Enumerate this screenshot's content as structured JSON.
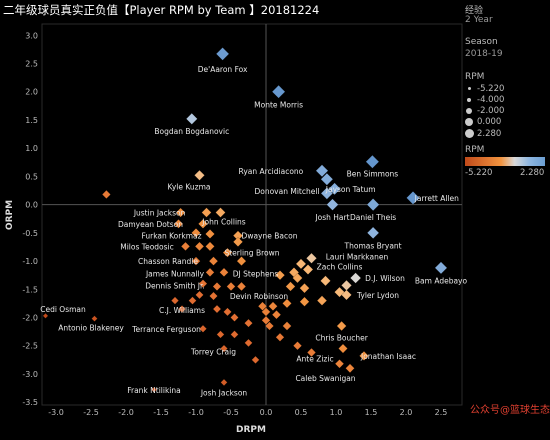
{
  "title": "二年级球员真实正负值【Player RPM by Team 】20181224",
  "sidebar": {
    "exp_label": "经验",
    "exp_value": "2 Year",
    "season_label": "Season",
    "season_value": "2018-19",
    "size_legend_title": "RPM",
    "size_legend_items": [
      "-5.220",
      "-4.000",
      "-2.000",
      "0.000",
      "2.280"
    ],
    "color_legend_title": "RPM",
    "color_min": "-5.220",
    "color_max": "2.280"
  },
  "watermark": "公众号@篮球生态",
  "chart_data": {
    "type": "scatter",
    "xlabel": "DRPM",
    "ylabel": "ORPM",
    "xlim": [
      -3.2,
      2.8
    ],
    "ylim": [
      -3.55,
      3.2
    ],
    "xticks": [
      "-3.0",
      "-2.5",
      "-2.0",
      "-1.5",
      "-1.0",
      "-0.5",
      "0.0",
      "0.5",
      "1.0",
      "1.5",
      "2.0",
      "2.5"
    ],
    "yticks": [
      "3.0",
      "2.5",
      "2.0",
      "1.5",
      "1.0",
      "0.5",
      "0.0",
      "-0.5",
      "-1.0",
      "-1.5",
      "-2.0",
      "-2.5",
      "-3.0",
      "-3.5"
    ],
    "points": [
      {
        "x": -0.62,
        "y": 2.67,
        "label": "De'Aaron Fox",
        "lx": -0.62,
        "ly": 2.4
      },
      {
        "x": 0.18,
        "y": 2.0,
        "label": "Monte Morris",
        "lx": 0.18,
        "ly": 1.77
      },
      {
        "x": -1.06,
        "y": 1.52,
        "label": "Bogdan Bogdanovic",
        "lx": -1.06,
        "ly": 1.3
      },
      {
        "x": 1.52,
        "y": 0.76,
        "label": "Ben Simmons",
        "lx": 1.52,
        "ly": 0.55
      },
      {
        "x": 0.8,
        "y": 0.6,
        "label": "Ryan Arcidiacono",
        "lx": 0.07,
        "ly": 0.6
      },
      {
        "x": 0.87,
        "y": 0.45,
        "label": "",
        "lx": 0,
        "ly": 0
      },
      {
        "x": 0.98,
        "y": 0.28,
        "label": "Jayson Tatum",
        "lx": 1.21,
        "ly": 0.28
      },
      {
        "x": 0.87,
        "y": 0.2,
        "label": "Donovan Mitchell",
        "lx": 0.3,
        "ly": 0.24
      },
      {
        "x": 2.1,
        "y": 0.12,
        "label": "Jarrett Allen",
        "lx": 2.44,
        "ly": 0.12
      },
      {
        "x": 0.95,
        "y": 0.0,
        "label": "Josh Hart",
        "lx": 0.95,
        "ly": -0.22
      },
      {
        "x": 1.53,
        "y": 0.0,
        "label": "Daniel Theis",
        "lx": 1.53,
        "ly": -0.22
      },
      {
        "x": 1.53,
        "y": -0.5,
        "label": "Thomas Bryant",
        "lx": 1.53,
        "ly": -0.72
      },
      {
        "x": 2.5,
        "y": -1.12,
        "label": "Bam Adebayo",
        "lx": 2.5,
        "ly": -1.34
      },
      {
        "x": -0.95,
        "y": 0.52,
        "label": "Kyle Kuzma",
        "lx": -1.1,
        "ly": 0.32
      },
      {
        "x": -2.28,
        "y": 0.18,
        "label": "",
        "lx": 0,
        "ly": 0
      },
      {
        "x": -1.22,
        "y": -0.14,
        "label": "Justin Jackson",
        "lx": -1.52,
        "ly": -0.14
      },
      {
        "x": -0.85,
        "y": -0.14,
        "label": "",
        "lx": 0,
        "ly": 0
      },
      {
        "x": -0.65,
        "y": -0.14,
        "label": "John Collins",
        "lx": -0.6,
        "ly": -0.3
      },
      {
        "x": -1.25,
        "y": -0.34,
        "label": "Damyean Dotson",
        "lx": -1.65,
        "ly": -0.34
      },
      {
        "x": -0.9,
        "y": -0.34,
        "label": "",
        "lx": 0,
        "ly": 0
      },
      {
        "x": -1.0,
        "y": -0.5,
        "label": "",
        "lx": 0,
        "ly": 0
      },
      {
        "x": -0.8,
        "y": -0.52,
        "label": "Furkan Korkmaz",
        "lx": -1.35,
        "ly": -0.55
      },
      {
        "x": -0.4,
        "y": -0.55,
        "label": "Dwayne Bacon",
        "lx": 0.05,
        "ly": -0.55
      },
      {
        "x": -0.4,
        "y": -0.66,
        "label": "",
        "lx": 0,
        "ly": 0
      },
      {
        "x": -1.15,
        "y": -0.74,
        "label": "Milos Teodosic",
        "lx": -1.7,
        "ly": -0.74
      },
      {
        "x": -0.95,
        "y": -0.74,
        "label": "",
        "lx": 0,
        "ly": 0
      },
      {
        "x": -0.8,
        "y": -0.74,
        "label": "",
        "lx": 0,
        "ly": 0
      },
      {
        "x": -0.55,
        "y": -0.85,
        "label": "Sterling Brown",
        "lx": -0.2,
        "ly": -0.85
      },
      {
        "x": 0.65,
        "y": -0.95,
        "label": "Lauri Markkanen",
        "lx": 1.3,
        "ly": -0.92
      },
      {
        "x": -1.0,
        "y": -1.0,
        "label": "Chasson Randle",
        "lx": -1.4,
        "ly": -1.0
      },
      {
        "x": -0.75,
        "y": -1.0,
        "label": "",
        "lx": 0,
        "ly": 0
      },
      {
        "x": -0.35,
        "y": -1.0,
        "label": "",
        "lx": 0,
        "ly": 0
      },
      {
        "x": 0.5,
        "y": -1.05,
        "label": "",
        "lx": 0,
        "ly": 0
      },
      {
        "x": 0.6,
        "y": -1.15,
        "label": "Zach Collins",
        "lx": 1.05,
        "ly": -1.1
      },
      {
        "x": 0.4,
        "y": -1.2,
        "label": "",
        "lx": 0,
        "ly": 0
      },
      {
        "x": 0.2,
        "y": -1.25,
        "label": "",
        "lx": 0,
        "ly": 0
      },
      {
        "x": -0.8,
        "y": -1.2,
        "label": "James Nunnally",
        "lx": -1.3,
        "ly": -1.22
      },
      {
        "x": -0.6,
        "y": -1.2,
        "label": "DJ Stephens",
        "lx": -0.15,
        "ly": -1.22
      },
      {
        "x": 0.45,
        "y": -1.3,
        "label": "",
        "lx": 0,
        "ly": 0
      },
      {
        "x": 1.28,
        "y": -1.3,
        "label": "D.J. Wilson",
        "lx": 1.7,
        "ly": -1.3
      },
      {
        "x": 0.85,
        "y": -1.35,
        "label": "",
        "lx": 0,
        "ly": 0
      },
      {
        "x": 1.15,
        "y": -1.43,
        "label": "",
        "lx": 0,
        "ly": 0
      },
      {
        "x": -0.9,
        "y": -1.4,
        "label": "Dennis Smith Jr.",
        "lx": -1.3,
        "ly": -1.43
      },
      {
        "x": -0.7,
        "y": -1.45,
        "label": "",
        "lx": 0,
        "ly": 0
      },
      {
        "x": -0.5,
        "y": -1.45,
        "label": "",
        "lx": 0,
        "ly": 0
      },
      {
        "x": -0.35,
        "y": -1.45,
        "label": "",
        "lx": 0,
        "ly": 0
      },
      {
        "x": 0.35,
        "y": -1.45,
        "label": "",
        "lx": 0,
        "ly": 0
      },
      {
        "x": 0.55,
        "y": -1.48,
        "label": "",
        "lx": 0,
        "ly": 0
      },
      {
        "x": 1.05,
        "y": -1.55,
        "label": "",
        "lx": 0,
        "ly": 0
      },
      {
        "x": 1.15,
        "y": -1.6,
        "label": "Tyler Lydon",
        "lx": 1.6,
        "ly": -1.6
      },
      {
        "x": -0.95,
        "y": -1.6,
        "label": "",
        "lx": 0,
        "ly": 0
      },
      {
        "x": -0.75,
        "y": -1.62,
        "label": "Devin Robinson",
        "lx": -0.1,
        "ly": -1.62
      },
      {
        "x": -1.3,
        "y": -1.7,
        "label": "",
        "lx": 0,
        "ly": 0
      },
      {
        "x": -1.05,
        "y": -1.7,
        "label": "",
        "lx": 0,
        "ly": 0
      },
      {
        "x": 0.8,
        "y": -1.7,
        "label": "",
        "lx": 0,
        "ly": 0
      },
      {
        "x": 0.55,
        "y": -1.72,
        "label": "",
        "lx": 0,
        "ly": 0
      },
      {
        "x": 0.3,
        "y": -1.75,
        "label": "",
        "lx": 0,
        "ly": 0
      },
      {
        "x": 0.1,
        "y": -1.8,
        "label": "",
        "lx": 0,
        "ly": 0
      },
      {
        "x": -0.05,
        "y": -1.8,
        "label": "",
        "lx": 0,
        "ly": 0
      },
      {
        "x": -1.2,
        "y": -1.85,
        "label": "C.J. Williams",
        "lx": -1.2,
        "ly": -1.87
      },
      {
        "x": -0.7,
        "y": -1.85,
        "label": "",
        "lx": 0,
        "ly": 0
      },
      {
        "x": -0.55,
        "y": -1.9,
        "label": "",
        "lx": 0,
        "ly": 0
      },
      {
        "x": 0.0,
        "y": -1.9,
        "label": "",
        "lx": 0,
        "ly": 0
      },
      {
        "x": 0.15,
        "y": -1.95,
        "label": "",
        "lx": 0,
        "ly": 0
      },
      {
        "x": -0.45,
        "y": -2.0,
        "label": "",
        "lx": 0,
        "ly": 0
      },
      {
        "x": 0.0,
        "y": -2.05,
        "label": "",
        "lx": 0,
        "ly": 0
      },
      {
        "x": -0.25,
        "y": -2.1,
        "label": "",
        "lx": 0,
        "ly": 0
      },
      {
        "x": 0.05,
        "y": -2.15,
        "label": "",
        "lx": 0,
        "ly": 0
      },
      {
        "x": 0.3,
        "y": -2.15,
        "label": "",
        "lx": 0,
        "ly": 0
      },
      {
        "x": 1.08,
        "y": -2.15,
        "label": "Chris Boucher",
        "lx": 1.08,
        "ly": -2.35
      },
      {
        "x": -0.9,
        "y": -2.2,
        "label": "Terrance Ferguson",
        "lx": -1.42,
        "ly": -2.2
      },
      {
        "x": -0.65,
        "y": -2.3,
        "label": "",
        "lx": 0,
        "ly": 0
      },
      {
        "x": -0.45,
        "y": -2.3,
        "label": "",
        "lx": 0,
        "ly": 0
      },
      {
        "x": 0.2,
        "y": -2.35,
        "label": "",
        "lx": 0,
        "ly": 0
      },
      {
        "x": -0.25,
        "y": -2.45,
        "label": "",
        "lx": 0,
        "ly": 0
      },
      {
        "x": 0.45,
        "y": -2.5,
        "label": "Ante Zizic",
        "lx": 0.7,
        "ly": -2.73
      },
      {
        "x": -0.6,
        "y": -2.55,
        "label": "Torrey Craig",
        "lx": -0.75,
        "ly": -2.6
      },
      {
        "x": 1.1,
        "y": -2.55,
        "label": "",
        "lx": 0,
        "ly": 0
      },
      {
        "x": 0.65,
        "y": -2.62,
        "label": "",
        "lx": 0,
        "ly": 0
      },
      {
        "x": 1.4,
        "y": -2.68,
        "label": "Jonathan Isaac",
        "lx": 1.75,
        "ly": -2.68
      },
      {
        "x": -0.15,
        "y": -2.75,
        "label": "",
        "lx": 0,
        "ly": 0
      },
      {
        "x": 1.05,
        "y": -2.82,
        "label": "",
        "lx": 0,
        "ly": 0
      },
      {
        "x": 1.2,
        "y": -2.9,
        "label": "Caleb Swanigan",
        "lx": 0.85,
        "ly": -3.07
      },
      {
        "x": -3.15,
        "y": -1.97,
        "label": "Cedi Osman",
        "lx": -2.9,
        "ly": -1.85
      },
      {
        "x": -2.45,
        "y": -2.02,
        "label": "Antonio Blakeney",
        "lx": -2.5,
        "ly": -2.18
      },
      {
        "x": -0.6,
        "y": -3.15,
        "label": "Josh Jackson",
        "lx": -0.6,
        "ly": -3.33
      },
      {
        "x": -1.6,
        "y": -3.28,
        "label": "Frank Ntilikina",
        "lx": -1.6,
        "ly": -3.28
      }
    ]
  }
}
